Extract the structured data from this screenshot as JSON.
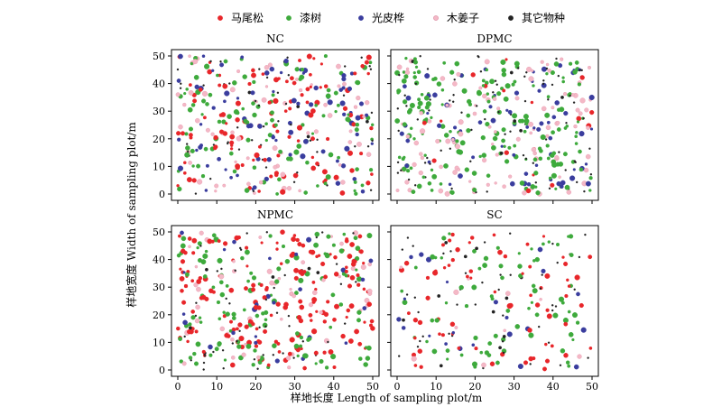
{
  "legend": {
    "placement": "top",
    "items": [
      {
        "label": "马尾松",
        "color": "#e8262a",
        "marker": "dot"
      },
      {
        "label": "漆树",
        "color": "#3eaa3c",
        "marker": "dot"
      },
      {
        "label": "光皮桦",
        "color": "#3a3d9e",
        "marker": "dot"
      },
      {
        "label": "木姜子",
        "color": "#f4b8c6",
        "marker": "dot"
      },
      {
        "label": "其它物种",
        "color": "#222222",
        "marker": "dot"
      }
    ]
  },
  "axes": {
    "xlabel": "样地长度 Length of sampling plot/m",
    "ylabel": "样地宽度 Width of sampling plot/m",
    "xticks": [
      "0",
      "10",
      "20",
      "30",
      "40",
      "50"
    ],
    "yticks": [
      "0",
      "10",
      "20",
      "30",
      "40",
      "50"
    ]
  },
  "chart_data": [
    {
      "type": "scatter",
      "title": "NC",
      "xlim": [
        0,
        50
      ],
      "ylim": [
        0,
        50
      ],
      "grid": false,
      "species_shares": [
        0.3,
        0.22,
        0.18,
        0.16,
        0.14
      ],
      "point_count": 420,
      "seed": 11
    },
    {
      "type": "scatter",
      "title": "DPMC",
      "xlim": [
        0,
        50
      ],
      "ylim": [
        0,
        50
      ],
      "grid": false,
      "species_shares": [
        0.05,
        0.4,
        0.15,
        0.2,
        0.2
      ],
      "point_count": 460,
      "seed": 23
    },
    {
      "type": "scatter",
      "title": "NPMC",
      "xlim": [
        0,
        50
      ],
      "ylim": [
        0,
        50
      ],
      "grid": false,
      "species_shares": [
        0.4,
        0.3,
        0.05,
        0.1,
        0.15
      ],
      "point_count": 440,
      "seed": 37
    },
    {
      "type": "scatter",
      "title": "SC",
      "xlim": [
        0,
        50
      ],
      "ylim": [
        0,
        50
      ],
      "grid": false,
      "species_shares": [
        0.32,
        0.3,
        0.1,
        0.03,
        0.25
      ],
      "point_count": 230,
      "seed": 53
    }
  ]
}
